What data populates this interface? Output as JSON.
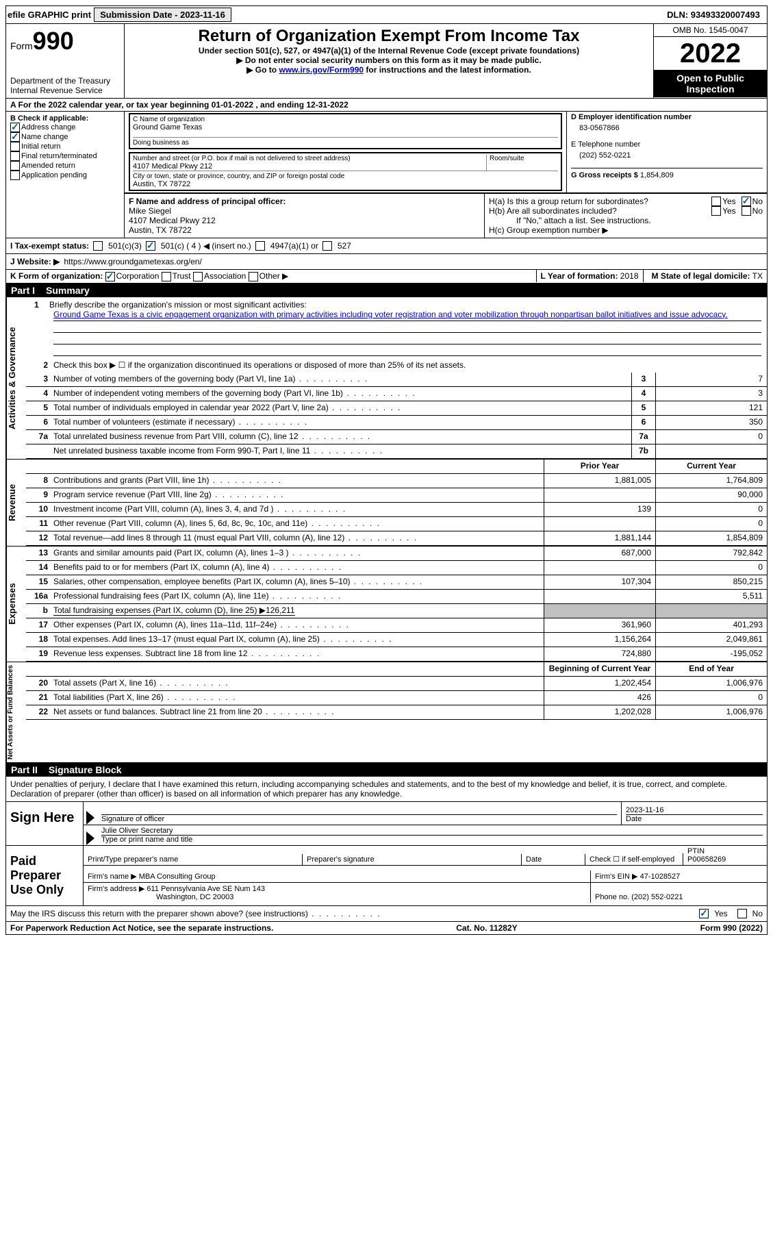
{
  "topbar": {
    "efile": "efile GRAPHIC print",
    "submission_label": "Submission Date - 2023-11-16",
    "dln": "DLN: 93493320007493"
  },
  "header": {
    "form_word": "Form",
    "form_num": "990",
    "dept": "Department of the Treasury",
    "irs": "Internal Revenue Service",
    "title": "Return of Organization Exempt From Income Tax",
    "subtitle": "Under section 501(c), 527, or 4947(a)(1) of the Internal Revenue Code (except private foundations)",
    "note1": "▶ Do not enter social security numbers on this form as it may be made public.",
    "note2_pre": "▶ Go to ",
    "note2_link": "www.irs.gov/Form990",
    "note2_post": " for instructions and the latest information.",
    "omb": "OMB No. 1545-0047",
    "year": "2022",
    "open": "Open to Public Inspection"
  },
  "period": {
    "text": "A   For the 2022 calendar year, or tax year beginning 01-01-2022     , and ending 12-31-2022"
  },
  "boxB": {
    "label": "B Check if applicable:",
    "items": [
      {
        "label": "Address change",
        "checked": true
      },
      {
        "label": "Name change",
        "checked": true
      },
      {
        "label": "Initial return",
        "checked": false
      },
      {
        "label": "Final return/terminated",
        "checked": false
      },
      {
        "label": "Amended return",
        "checked": false
      },
      {
        "label": "Application pending",
        "checked": false
      }
    ]
  },
  "boxC": {
    "name_label": "C Name of organization",
    "name": "Ground Game Texas",
    "dba_label": "Doing business as",
    "dba": "",
    "street_label": "Number and street (or P.O. box if mail is not delivered to street address)",
    "room_label": "Room/suite",
    "street": "4107 Medical Pkwy 212",
    "city_label": "City or town, state or province, country, and ZIP or foreign postal code",
    "city": "Austin, TX  78722"
  },
  "boxD": {
    "label": "D Employer identification number",
    "ein": "83-0567866",
    "phone_label": "E Telephone number",
    "phone": "(202) 552-0221",
    "gross_label": "G Gross receipts $",
    "gross": "1,854,809"
  },
  "officer": {
    "label": "F  Name and address of principal officer:",
    "name": "Mike Siegel",
    "addr1": "4107 Medical Pkwy 212",
    "addr2": "Austin, TX  78722"
  },
  "groupH": {
    "ha": "H(a)  Is this a group return for subordinates?",
    "hb": "H(b)  Are all subordinates included?",
    "hb_note": "If \"No,\" attach a list. See instructions.",
    "hc": "H(c)  Group exemption number ▶",
    "yes": "Yes",
    "no": "No"
  },
  "status": {
    "label": "I   Tax-exempt status:",
    "opt1": "501(c)(3)",
    "opt2": "501(c) ( 4 ) ◀ (insert no.)",
    "opt3": "4947(a)(1) or",
    "opt4": "527"
  },
  "website": {
    "label": "J   Website: ▶",
    "url": "https://www.groundgametexas.org/en/"
  },
  "formorg": {
    "k_label": "K Form of organization:",
    "corp": "Corporation",
    "trust": "Trust",
    "assoc": "Association",
    "other": "Other ▶",
    "l_label": "L Year of formation:",
    "l_val": "2018",
    "m_label": "M State of legal domicile:",
    "m_val": "TX"
  },
  "parts": {
    "p1": "Part I",
    "p1_title": "Summary",
    "p2": "Part II",
    "p2_title": "Signature Block"
  },
  "summary": {
    "sec1": "Activities & Governance",
    "sec2": "Revenue",
    "sec3": "Expenses",
    "sec4": "Net Assets or Fund Balances",
    "line1_label": "Briefly describe the organization's mission or most significant activities:",
    "mission": "Ground Game Texas is a civic engagement organization with primary activities including voter registration and voter mobilization through nonpartisan ballot initiatives and issue advocacy.",
    "line2": "Check this box ▶ ☐  if the organization discontinued its operations or disposed of more than 25% of its net assets.",
    "lines_single": [
      {
        "n": "3",
        "d": "Number of voting members of the governing body (Part VI, line 1a)",
        "b": "3",
        "v": "7"
      },
      {
        "n": "4",
        "d": "Number of independent voting members of the governing body (Part VI, line 1b)",
        "b": "4",
        "v": "3"
      },
      {
        "n": "5",
        "d": "Total number of individuals employed in calendar year 2022 (Part V, line 2a)",
        "b": "5",
        "v": "121"
      },
      {
        "n": "6",
        "d": "Total number of volunteers (estimate if necessary)",
        "b": "6",
        "v": "350"
      },
      {
        "n": "7a",
        "d": "Total unrelated business revenue from Part VIII, column (C), line 12",
        "b": "7a",
        "v": "0"
      },
      {
        "n": "",
        "d": "Net unrelated business taxable income from Form 990-T, Part I, line 11",
        "b": "7b",
        "v": ""
      }
    ],
    "col_prior": "Prior Year",
    "col_current": "Current Year",
    "col_beg": "Beginning of Current Year",
    "col_end": "End of Year",
    "revenue": [
      {
        "n": "8",
        "d": "Contributions and grants (Part VIII, line 1h)",
        "p": "1,881,005",
        "c": "1,764,809"
      },
      {
        "n": "9",
        "d": "Program service revenue (Part VIII, line 2g)",
        "p": "",
        "c": "90,000"
      },
      {
        "n": "10",
        "d": "Investment income (Part VIII, column (A), lines 3, 4, and 7d )",
        "p": "139",
        "c": "0"
      },
      {
        "n": "11",
        "d": "Other revenue (Part VIII, column (A), lines 5, 6d, 8c, 9c, 10c, and 11e)",
        "p": "",
        "c": "0"
      },
      {
        "n": "12",
        "d": "Total revenue—add lines 8 through 11 (must equal Part VIII, column (A), line 12)",
        "p": "1,881,144",
        "c": "1,854,809"
      }
    ],
    "expenses": [
      {
        "n": "13",
        "d": "Grants and similar amounts paid (Part IX, column (A), lines 1–3 )",
        "p": "687,000",
        "c": "792,842"
      },
      {
        "n": "14",
        "d": "Benefits paid to or for members (Part IX, column (A), line 4)",
        "p": "",
        "c": "0"
      },
      {
        "n": "15",
        "d": "Salaries, other compensation, employee benefits (Part IX, column (A), lines 5–10)",
        "p": "107,304",
        "c": "850,215"
      },
      {
        "n": "16a",
        "d": "Professional fundraising fees (Part IX, column (A), line 11e)",
        "p": "",
        "c": "5,511"
      }
    ],
    "line16b": "Total fundraising expenses (Part IX, column (D), line 25) ▶126,211",
    "expenses2": [
      {
        "n": "17",
        "d": "Other expenses (Part IX, column (A), lines 11a–11d, 11f–24e)",
        "p": "361,960",
        "c": "401,293"
      },
      {
        "n": "18",
        "d": "Total expenses. Add lines 13–17 (must equal Part IX, column (A), line 25)",
        "p": "1,156,264",
        "c": "2,049,861"
      },
      {
        "n": "19",
        "d": "Revenue less expenses. Subtract line 18 from line 12",
        "p": "724,880",
        "c": "-195,052"
      }
    ],
    "netassets": [
      {
        "n": "20",
        "d": "Total assets (Part X, line 16)",
        "p": "1,202,454",
        "c": "1,006,976"
      },
      {
        "n": "21",
        "d": "Total liabilities (Part X, line 26)",
        "p": "426",
        "c": "0"
      },
      {
        "n": "22",
        "d": "Net assets or fund balances. Subtract line 21 from line 20",
        "p": "1,202,028",
        "c": "1,006,976"
      }
    ]
  },
  "sig": {
    "intro": "Under penalties of perjury, I declare that I have examined this return, including accompanying schedules and statements, and to the best of my knowledge and belief, it is true, correct, and complete. Declaration of preparer (other than officer) is based on all information of which preparer has any knowledge.",
    "sign_here": "Sign Here",
    "sig_officer": "Signature of officer",
    "date_label": "Date",
    "date": "2023-11-16",
    "name_title": "Julie Oliver  Secretary",
    "name_title_label": "Type or print name and title",
    "paid": "Paid Preparer Use Only",
    "prep_name_label": "Print/Type preparer's name",
    "prep_sig_label": "Preparer's signature",
    "check_self": "Check ☐ if self-employed",
    "ptin_label": "PTIN",
    "ptin": "P00658269",
    "firm_name_label": "Firm's name    ▶",
    "firm_name": "MBA Consulting Group",
    "firm_ein_label": "Firm's EIN ▶",
    "firm_ein": "47-1028527",
    "firm_addr_label": "Firm's address ▶",
    "firm_addr1": "611 Pennsylvania Ave SE Num 143",
    "firm_addr2": "Washington, DC  20003",
    "firm_phone_label": "Phone no.",
    "firm_phone": "(202) 552-0221",
    "discuss": "May the IRS discuss this return with the preparer shown above? (see instructions)",
    "yes": "Yes",
    "no": "No"
  },
  "footer": {
    "left": "For Paperwork Reduction Act Notice, see the separate instructions.",
    "mid": "Cat. No. 11282Y",
    "right": "Form 990 (2022)"
  }
}
